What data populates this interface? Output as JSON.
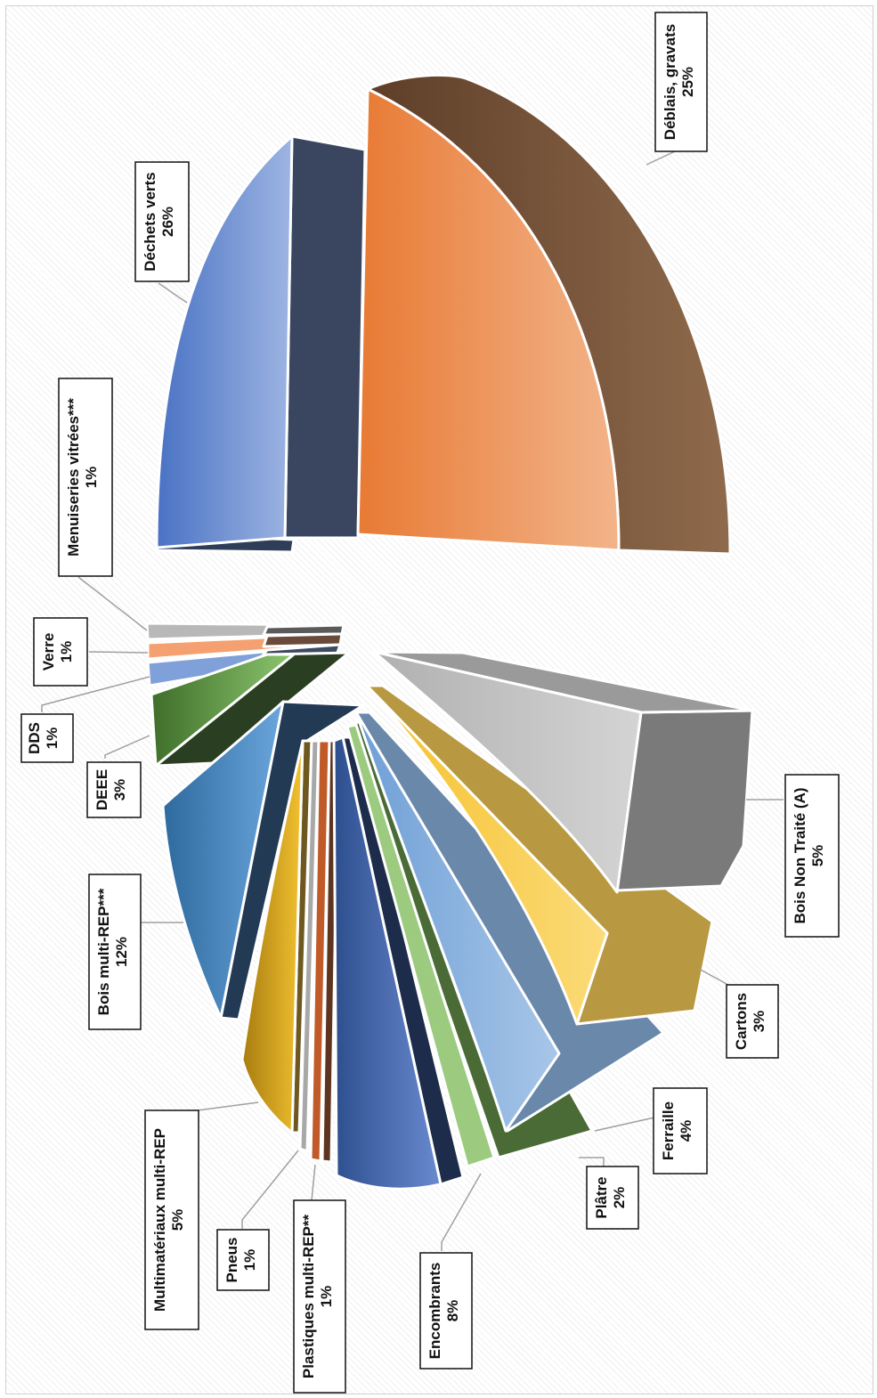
{
  "chart_data": {
    "type": "pie",
    "variant": "3d exploded pie, rotated 90° clockwise",
    "title": "",
    "categories": [
      "Déblais, gravats",
      "Bois Non Traité (A)",
      "Cartons",
      "Ferraille",
      "Plâtre",
      "Encombrants",
      "Plastiques multi-REP**",
      "Pneus",
      "Multimatériaux multi-REP",
      "Bois multi-REP***",
      "DEEE",
      "DDS",
      "Verre",
      "Menuiseries vitrées***",
      "Déchets verts"
    ],
    "values": [
      25,
      5,
      3,
      4,
      2,
      8,
      1,
      1,
      5,
      12,
      3,
      1,
      1,
      1,
      26
    ],
    "value_labels": [
      "25%",
      "5%",
      "3%",
      "4%",
      "2%",
      "8%",
      "1%",
      "1%",
      "5%",
      "12%",
      "3%",
      "1%",
      "1%",
      "1%",
      "26%"
    ],
    "colors": [
      "#8b5a3c",
      "#c0c0c0",
      "#e0b040",
      "#8fb3dc",
      "#9ccb80",
      "#4a6bb5",
      "#c05a28",
      "#a8a8a8",
      "#f2c230",
      "#5b9bd5",
      "#6aa84f",
      "#7fa0d8",
      "#f4a070",
      "#a8a8a8",
      "#8aa6dc"
    ],
    "legend": "none; labels in boxes with leader lines",
    "grid": false
  }
}
